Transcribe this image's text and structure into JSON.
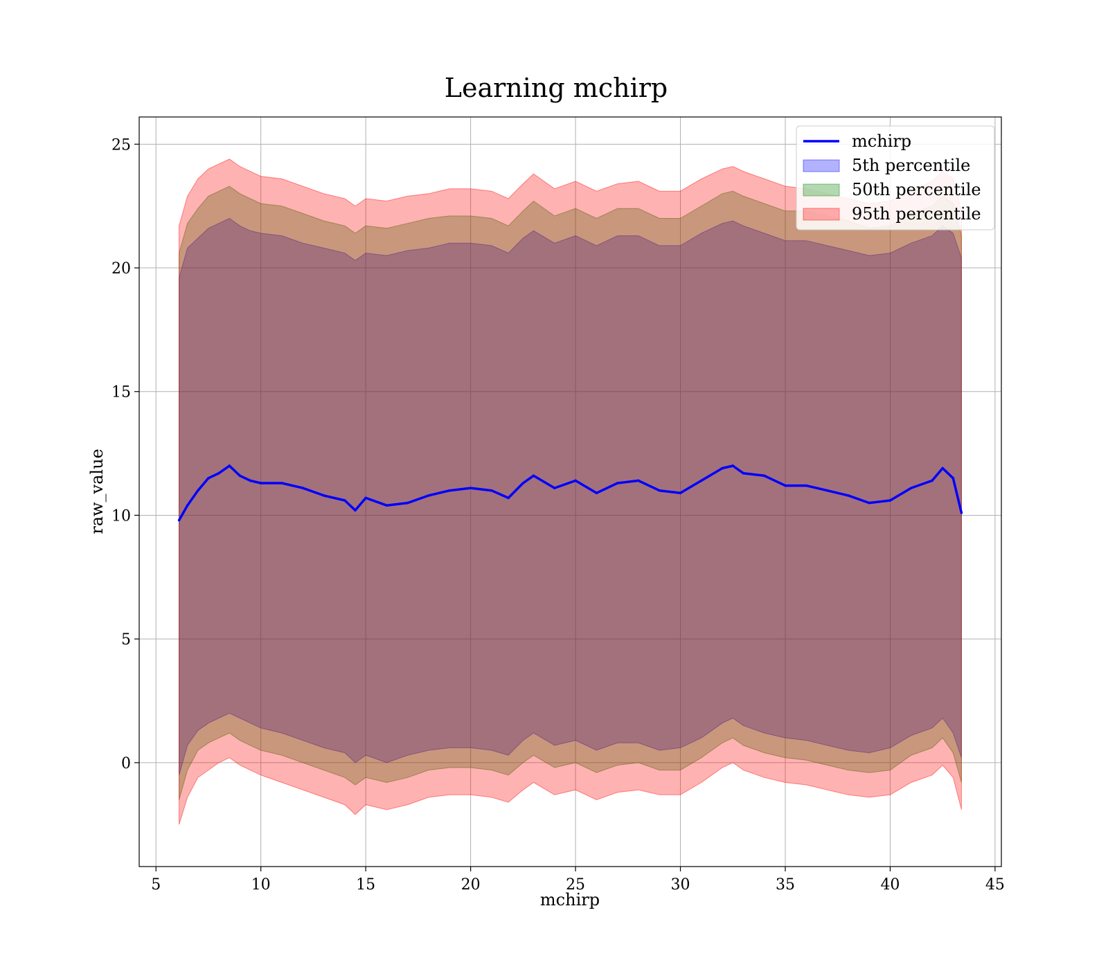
{
  "chart_data": {
    "type": "area",
    "title": "Learning mchirp",
    "xlabel": "mchirp",
    "ylabel": "raw_value",
    "xlim": [
      4.2,
      45.3
    ],
    "ylim": [
      -4.2,
      26.1
    ],
    "xticks": [
      5,
      10,
      15,
      20,
      25,
      30,
      35,
      40,
      45
    ],
    "yticks": [
      0,
      5,
      10,
      15,
      20,
      25
    ],
    "xtick_labels": [
      "5",
      "10",
      "15",
      "20",
      "25",
      "30",
      "35",
      "40",
      "45"
    ],
    "ytick_labels": [
      "0",
      "5",
      "10",
      "15",
      "20",
      "25"
    ],
    "grid": true,
    "legend_position": "top-right",
    "legend": [
      "mchirp",
      "5th percentile",
      "50th percentile",
      "95th percentile"
    ],
    "series": [
      {
        "name": "mchirp",
        "kind": "line",
        "color": "#0000ff",
        "x": [
          6.1,
          6.5,
          7.0,
          7.5,
          8.0,
          8.5,
          9.0,
          9.5,
          10.0,
          11.0,
          12.0,
          13.0,
          14.0,
          14.5,
          15.0,
          16.0,
          17.0,
          18.0,
          19.0,
          20.0,
          21.0,
          21.8,
          22.5,
          23.0,
          24.0,
          25.0,
          26.0,
          27.0,
          28.0,
          29.0,
          30.0,
          31.0,
          32.0,
          32.5,
          33.0,
          34.0,
          35.0,
          36.0,
          37.0,
          38.0,
          39.0,
          40.0,
          41.0,
          42.0,
          42.5,
          43.0,
          43.4
        ],
        "y": [
          9.8,
          10.4,
          11.0,
          11.5,
          11.7,
          12.0,
          11.6,
          11.4,
          11.3,
          11.3,
          11.1,
          10.8,
          10.6,
          10.2,
          10.7,
          10.4,
          10.5,
          10.8,
          11.0,
          11.1,
          11.0,
          10.7,
          11.3,
          11.6,
          11.1,
          11.4,
          10.9,
          11.3,
          11.4,
          11.0,
          10.9,
          11.4,
          11.9,
          12.0,
          11.7,
          11.6,
          11.2,
          11.2,
          11.0,
          10.8,
          10.5,
          10.6,
          11.1,
          11.4,
          11.9,
          11.5,
          10.1
        ]
      },
      {
        "name": "5th percentile",
        "kind": "band",
        "color": "#0000ff",
        "opacity": 0.3,
        "x": [
          6.1,
          6.5,
          7.0,
          7.5,
          8.0,
          8.5,
          9.0,
          9.5,
          10.0,
          11.0,
          12.0,
          13.0,
          14.0,
          14.5,
          15.0,
          16.0,
          17.0,
          18.0,
          19.0,
          20.0,
          21.0,
          21.8,
          22.5,
          23.0,
          24.0,
          25.0,
          26.0,
          27.0,
          28.0,
          29.0,
          30.0,
          31.0,
          32.0,
          32.5,
          33.0,
          34.0,
          35.0,
          36.0,
          37.0,
          38.0,
          39.0,
          40.0,
          41.0,
          42.0,
          42.5,
          43.0,
          43.4
        ],
        "lower": [
          -0.5,
          0.7,
          1.3,
          1.6,
          1.8,
          2.0,
          1.8,
          1.6,
          1.4,
          1.2,
          0.9,
          0.6,
          0.4,
          0.0,
          0.3,
          0.0,
          0.3,
          0.5,
          0.6,
          0.6,
          0.5,
          0.3,
          0.9,
          1.2,
          0.7,
          0.9,
          0.5,
          0.8,
          0.8,
          0.5,
          0.6,
          1.0,
          1.6,
          1.8,
          1.5,
          1.2,
          1.0,
          0.9,
          0.7,
          0.5,
          0.4,
          0.6,
          1.1,
          1.4,
          1.8,
          1.2,
          0.2
        ],
        "upper": [
          19.6,
          20.8,
          21.2,
          21.6,
          21.8,
          22.0,
          21.7,
          21.5,
          21.4,
          21.3,
          21.0,
          20.8,
          20.6,
          20.3,
          20.6,
          20.5,
          20.7,
          20.8,
          21.0,
          21.0,
          20.9,
          20.6,
          21.2,
          21.5,
          21.0,
          21.3,
          20.9,
          21.3,
          21.3,
          20.9,
          20.9,
          21.4,
          21.8,
          21.9,
          21.7,
          21.4,
          21.1,
          21.1,
          20.9,
          20.7,
          20.5,
          20.6,
          21.0,
          21.3,
          21.7,
          21.4,
          20.4
        ]
      },
      {
        "name": "50th percentile",
        "kind": "band",
        "color": "#008000",
        "opacity": 0.3,
        "x": [
          6.1,
          6.5,
          7.0,
          7.5,
          8.0,
          8.5,
          9.0,
          9.5,
          10.0,
          11.0,
          12.0,
          13.0,
          14.0,
          14.5,
          15.0,
          16.0,
          17.0,
          18.0,
          19.0,
          20.0,
          21.0,
          21.8,
          22.5,
          23.0,
          24.0,
          25.0,
          26.0,
          27.0,
          28.0,
          29.0,
          30.0,
          31.0,
          32.0,
          32.5,
          33.0,
          34.0,
          35.0,
          36.0,
          37.0,
          38.0,
          39.0,
          40.0,
          41.0,
          42.0,
          42.5,
          43.0,
          43.4
        ],
        "lower": [
          -1.5,
          -0.3,
          0.5,
          0.8,
          1.0,
          1.2,
          0.9,
          0.7,
          0.5,
          0.3,
          0.0,
          -0.3,
          -0.6,
          -0.9,
          -0.6,
          -0.8,
          -0.6,
          -0.3,
          -0.2,
          -0.2,
          -0.3,
          -0.5,
          0.0,
          0.3,
          -0.2,
          0.0,
          -0.4,
          -0.1,
          0.0,
          -0.3,
          -0.3,
          0.2,
          0.8,
          1.0,
          0.7,
          0.4,
          0.2,
          0.1,
          -0.1,
          -0.3,
          -0.4,
          -0.3,
          0.3,
          0.6,
          1.0,
          0.4,
          -0.8
        ],
        "upper": [
          20.6,
          21.8,
          22.4,
          22.9,
          23.1,
          23.3,
          23.0,
          22.8,
          22.6,
          22.5,
          22.2,
          21.9,
          21.7,
          21.4,
          21.7,
          21.6,
          21.8,
          22.0,
          22.1,
          22.1,
          22.0,
          21.7,
          22.3,
          22.7,
          22.1,
          22.4,
          22.0,
          22.4,
          22.4,
          22.0,
          22.0,
          22.5,
          23.0,
          23.1,
          22.9,
          22.6,
          22.3,
          22.3,
          22.1,
          21.9,
          21.6,
          21.7,
          22.2,
          22.5,
          22.9,
          22.6,
          21.3
        ]
      },
      {
        "name": "95th percentile",
        "kind": "band",
        "color": "#ff0000",
        "opacity": 0.3,
        "x": [
          6.1,
          6.5,
          7.0,
          7.5,
          8.0,
          8.5,
          9.0,
          9.5,
          10.0,
          11.0,
          12.0,
          13.0,
          14.0,
          14.5,
          15.0,
          16.0,
          17.0,
          18.0,
          19.0,
          20.0,
          21.0,
          21.8,
          22.5,
          23.0,
          24.0,
          25.0,
          26.0,
          27.0,
          28.0,
          29.0,
          30.0,
          31.0,
          32.0,
          32.5,
          33.0,
          34.0,
          35.0,
          36.0,
          37.0,
          38.0,
          39.0,
          40.0,
          41.0,
          42.0,
          42.5,
          43.0,
          43.4
        ],
        "lower": [
          -2.5,
          -1.4,
          -0.6,
          -0.3,
          0.0,
          0.2,
          -0.1,
          -0.3,
          -0.5,
          -0.8,
          -1.1,
          -1.4,
          -1.7,
          -2.1,
          -1.7,
          -1.9,
          -1.7,
          -1.4,
          -1.3,
          -1.3,
          -1.4,
          -1.6,
          -1.1,
          -0.8,
          -1.3,
          -1.1,
          -1.5,
          -1.2,
          -1.1,
          -1.3,
          -1.3,
          -0.8,
          -0.2,
          0.0,
          -0.3,
          -0.6,
          -0.8,
          -0.9,
          -1.1,
          -1.3,
          -1.4,
          -1.3,
          -0.8,
          -0.5,
          -0.1,
          -0.6,
          -1.9
        ],
        "upper": [
          21.7,
          22.9,
          23.6,
          24.0,
          24.2,
          24.4,
          24.1,
          23.9,
          23.7,
          23.6,
          23.3,
          23.0,
          22.8,
          22.5,
          22.8,
          22.7,
          22.9,
          23.0,
          23.2,
          23.2,
          23.1,
          22.8,
          23.4,
          23.8,
          23.2,
          23.5,
          23.1,
          23.4,
          23.5,
          23.1,
          23.1,
          23.6,
          24.0,
          24.1,
          23.9,
          23.6,
          23.3,
          23.2,
          23.0,
          22.8,
          22.6,
          22.7,
          23.1,
          23.5,
          23.9,
          23.6,
          22.3
        ]
      }
    ]
  }
}
